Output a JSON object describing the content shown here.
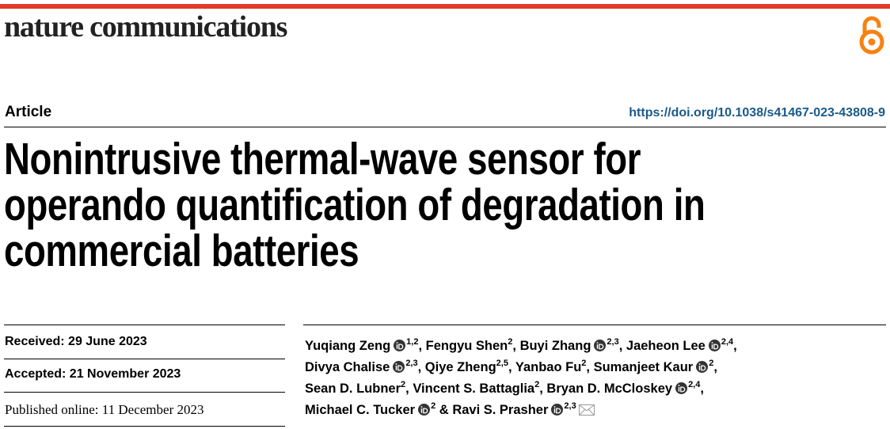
{
  "header": {
    "journal": "nature communications"
  },
  "article": {
    "type": "Article",
    "doi": "https://doi.org/10.1038/s41467-023-43808-9"
  },
  "title": {
    "lines": [
      "Nonintrusive thermal-wave sensor for",
      "operando quantification of degradation in",
      "commercial batteries"
    ]
  },
  "dates": {
    "received": "Received: 29 June 2023",
    "accepted": "Accepted: 21 November 2023",
    "published": "Published online: 11 December 2023"
  },
  "authors": {
    "lines": [
      [
        {
          "name": "Yuqiang Zeng",
          "orcid": true,
          "affiliations": "1,2",
          "sep": ","
        },
        {
          "name": "Fengyu Shen",
          "orcid": false,
          "affiliations": "2",
          "sep": ","
        },
        {
          "name": "Buyi Zhang",
          "orcid": true,
          "affiliations": "2,3",
          "sep": ","
        },
        {
          "name": "Jaeheon Lee",
          "orcid": true,
          "affiliations": "2,4",
          "sep": ","
        }
      ],
      [
        {
          "name": "Divya Chalise",
          "orcid": true,
          "affiliations": "2,3",
          "sep": ","
        },
        {
          "name": "Qiye Zheng",
          "orcid": false,
          "affiliations": "2,5",
          "sep": ","
        },
        {
          "name": "Yanbao Fu",
          "orcid": false,
          "affiliations": "2",
          "sep": ","
        },
        {
          "name": "Sumanjeet Kaur",
          "orcid": true,
          "affiliations": "2",
          "sep": ","
        }
      ],
      [
        {
          "name": "Sean D. Lubner",
          "orcid": false,
          "affiliations": "2",
          "sep": ","
        },
        {
          "name": "Vincent S. Battaglia",
          "orcid": false,
          "affiliations": "2",
          "sep": ","
        },
        {
          "name": "Bryan D. McCloskey",
          "orcid": true,
          "affiliations": "2,4",
          "sep": ","
        }
      ],
      [
        {
          "name": "Michael C. Tucker",
          "orcid": true,
          "affiliations": "2",
          "sep": "&"
        },
        {
          "name": "Ravi S. Prasher",
          "orcid": true,
          "affiliations": "2,3"
        }
      ]
    ]
  }
}
